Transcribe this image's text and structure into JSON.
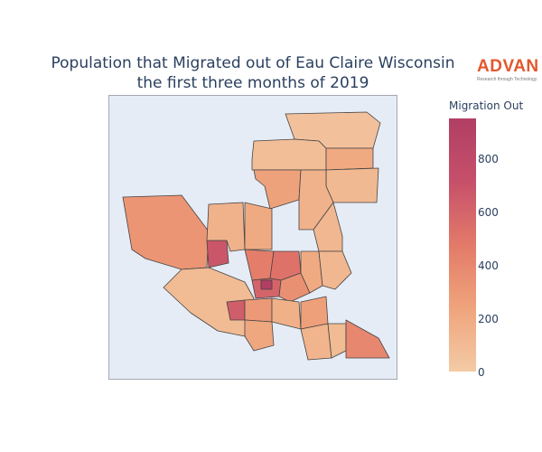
{
  "title_line1": "Population that Migrated out of Eau Claire Wisconsin",
  "title_line2": "the first three months of 2019",
  "logo": {
    "word": "ADVAN",
    "tagline": "Research through Technology"
  },
  "colorbar": {
    "title": "Migration Out",
    "min": 0,
    "max": 950,
    "ticks": [
      0,
      200,
      400,
      600,
      800
    ],
    "colors": [
      "#f3cba5",
      "#efa47c",
      "#e37a69",
      "#c6506a",
      "#b13f64"
    ]
  },
  "chart_data": {
    "type": "choropleth",
    "title": "Population that Migrated out of Eau Claire Wisconsin the first three months of 2019",
    "colorbar_title": "Migration Out",
    "range": [
      0,
      950
    ],
    "regions": [
      {
        "id": "tract-north-top",
        "value": 60
      },
      {
        "id": "tract-north-left",
        "value": 80
      },
      {
        "id": "tract-north-right",
        "value": 200
      },
      {
        "id": "tract-northeast",
        "value": 110
      },
      {
        "id": "tract-north-mid-left",
        "value": 250
      },
      {
        "id": "tract-north-mid",
        "value": 150
      },
      {
        "id": "tract-east-mid",
        "value": 120
      },
      {
        "id": "tract-west-wing",
        "value": 320
      },
      {
        "id": "tract-west-red",
        "value": 680
      },
      {
        "id": "tract-west-inner",
        "value": 150
      },
      {
        "id": "tract-center-north",
        "value": 200
      },
      {
        "id": "tract-center-a",
        "value": 450
      },
      {
        "id": "tract-center-b",
        "value": 520
      },
      {
        "id": "tract-center-c",
        "value": 600
      },
      {
        "id": "tract-center-core",
        "value": 950
      },
      {
        "id": "tract-center-d",
        "value": 350
      },
      {
        "id": "tract-center-east",
        "value": 200
      },
      {
        "id": "tract-center-east-2",
        "value": 120
      },
      {
        "id": "tract-southwest-long",
        "value": 100
      },
      {
        "id": "tract-southwest-red",
        "value": 640
      },
      {
        "id": "tract-south-a",
        "value": 300
      },
      {
        "id": "tract-south-b",
        "value": 160
      },
      {
        "id": "tract-south-c",
        "value": 260
      },
      {
        "id": "tract-south-d",
        "value": 140
      },
      {
        "id": "tract-south-e",
        "value": 100
      },
      {
        "id": "tract-southeast",
        "value": 400
      },
      {
        "id": "tract-southwest-bottom",
        "value": 220
      }
    ]
  }
}
